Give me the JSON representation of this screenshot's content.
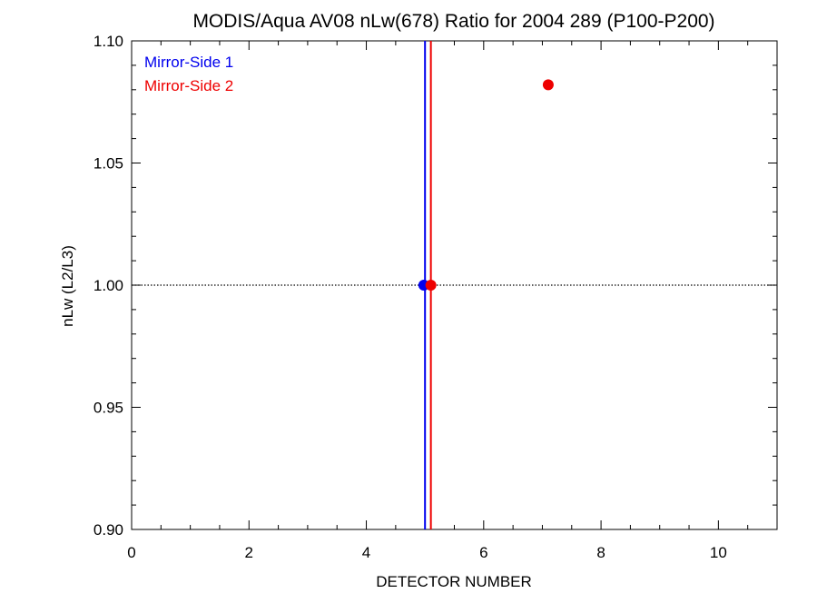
{
  "chart_data": {
    "type": "scatter",
    "title": "MODIS/Aqua AV08 nLw(678) Ratio for 2004 289 (P100-P200)",
    "xlabel": "DETECTOR NUMBER",
    "ylabel": "nLw (L2/L3)",
    "xlim": [
      0,
      11
    ],
    "ylim": [
      0.9,
      1.1
    ],
    "xticks": [
      0,
      2,
      4,
      6,
      8,
      10
    ],
    "xtick_labels": [
      "0",
      "2",
      "4",
      "6",
      "8",
      "10"
    ],
    "yticks": [
      0.9,
      0.95,
      1.0,
      1.05,
      1.1
    ],
    "ytick_labels": [
      "0.90",
      "0.95",
      "1.00",
      "1.05",
      "1.10"
    ],
    "grid": false,
    "legend_position": "top-left",
    "reference_line_y": 1.0,
    "series": [
      {
        "name": "Mirror-Side 1",
        "color": "#0000ee",
        "points": [
          {
            "x": 4.98,
            "y": 1.0
          }
        ],
        "vertical_line_x": 5.0
      },
      {
        "name": "Mirror-Side 2",
        "color": "#ee0000",
        "points": [
          {
            "x": 5.1,
            "y": 1.0
          },
          {
            "x": 7.1,
            "y": 1.082
          }
        ],
        "vertical_line_x": 5.1
      }
    ]
  }
}
